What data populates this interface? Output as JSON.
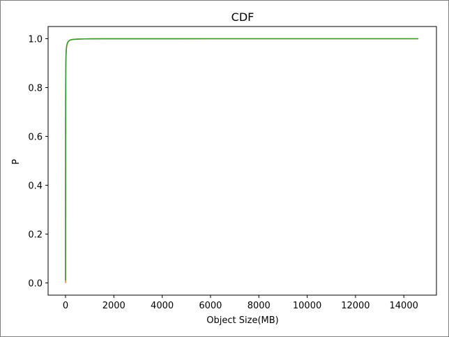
{
  "chart_data": {
    "type": "line",
    "title": "CDF",
    "xlabel": "Object Size(MB)",
    "ylabel": "P",
    "xlim": [
      -720,
      15350
    ],
    "ylim": [
      -0.05,
      1.05
    ],
    "x_ticks": [
      0,
      2000,
      4000,
      6000,
      8000,
      10000,
      12000,
      14000
    ],
    "y_ticks": [
      0.0,
      0.2,
      0.4,
      0.6,
      0.8,
      1.0
    ],
    "x_tick_labels": [
      "0",
      "2000",
      "4000",
      "6000",
      "8000",
      "10000",
      "12000",
      "14000"
    ],
    "y_tick_labels": [
      "0.0",
      "0.2",
      "0.4",
      "0.6",
      "0.8",
      "1.0"
    ],
    "grid": false,
    "series": [
      {
        "color": "#ff7f0e",
        "x": [
          0,
          3,
          6,
          10,
          15,
          22,
          30,
          40,
          55,
          75,
          100,
          150,
          200,
          300,
          500,
          800,
          1500,
          3000,
          6000,
          10000,
          14600
        ],
        "y": [
          0.0,
          0.45,
          0.72,
          0.85,
          0.9,
          0.93,
          0.95,
          0.962,
          0.972,
          0.98,
          0.986,
          0.992,
          0.995,
          0.997,
          0.9985,
          0.9993,
          0.9997,
          0.9999,
          1.0,
          1.0,
          1.0
        ]
      },
      {
        "color": "#2ca02c",
        "x": [
          0,
          3,
          6,
          10,
          15,
          22,
          30,
          40,
          55,
          75,
          100,
          150,
          200,
          300,
          500,
          800,
          1500,
          3000,
          6000,
          10000,
          14600
        ],
        "y": [
          0.01,
          0.46,
          0.73,
          0.855,
          0.905,
          0.935,
          0.952,
          0.965,
          0.974,
          0.981,
          0.987,
          0.992,
          0.995,
          0.997,
          0.9985,
          0.9993,
          0.9997,
          0.9999,
          1.0,
          1.0,
          1.0
        ]
      }
    ]
  },
  "colors": {
    "axis": "#000000",
    "frame_border": "#7f7f7f"
  }
}
